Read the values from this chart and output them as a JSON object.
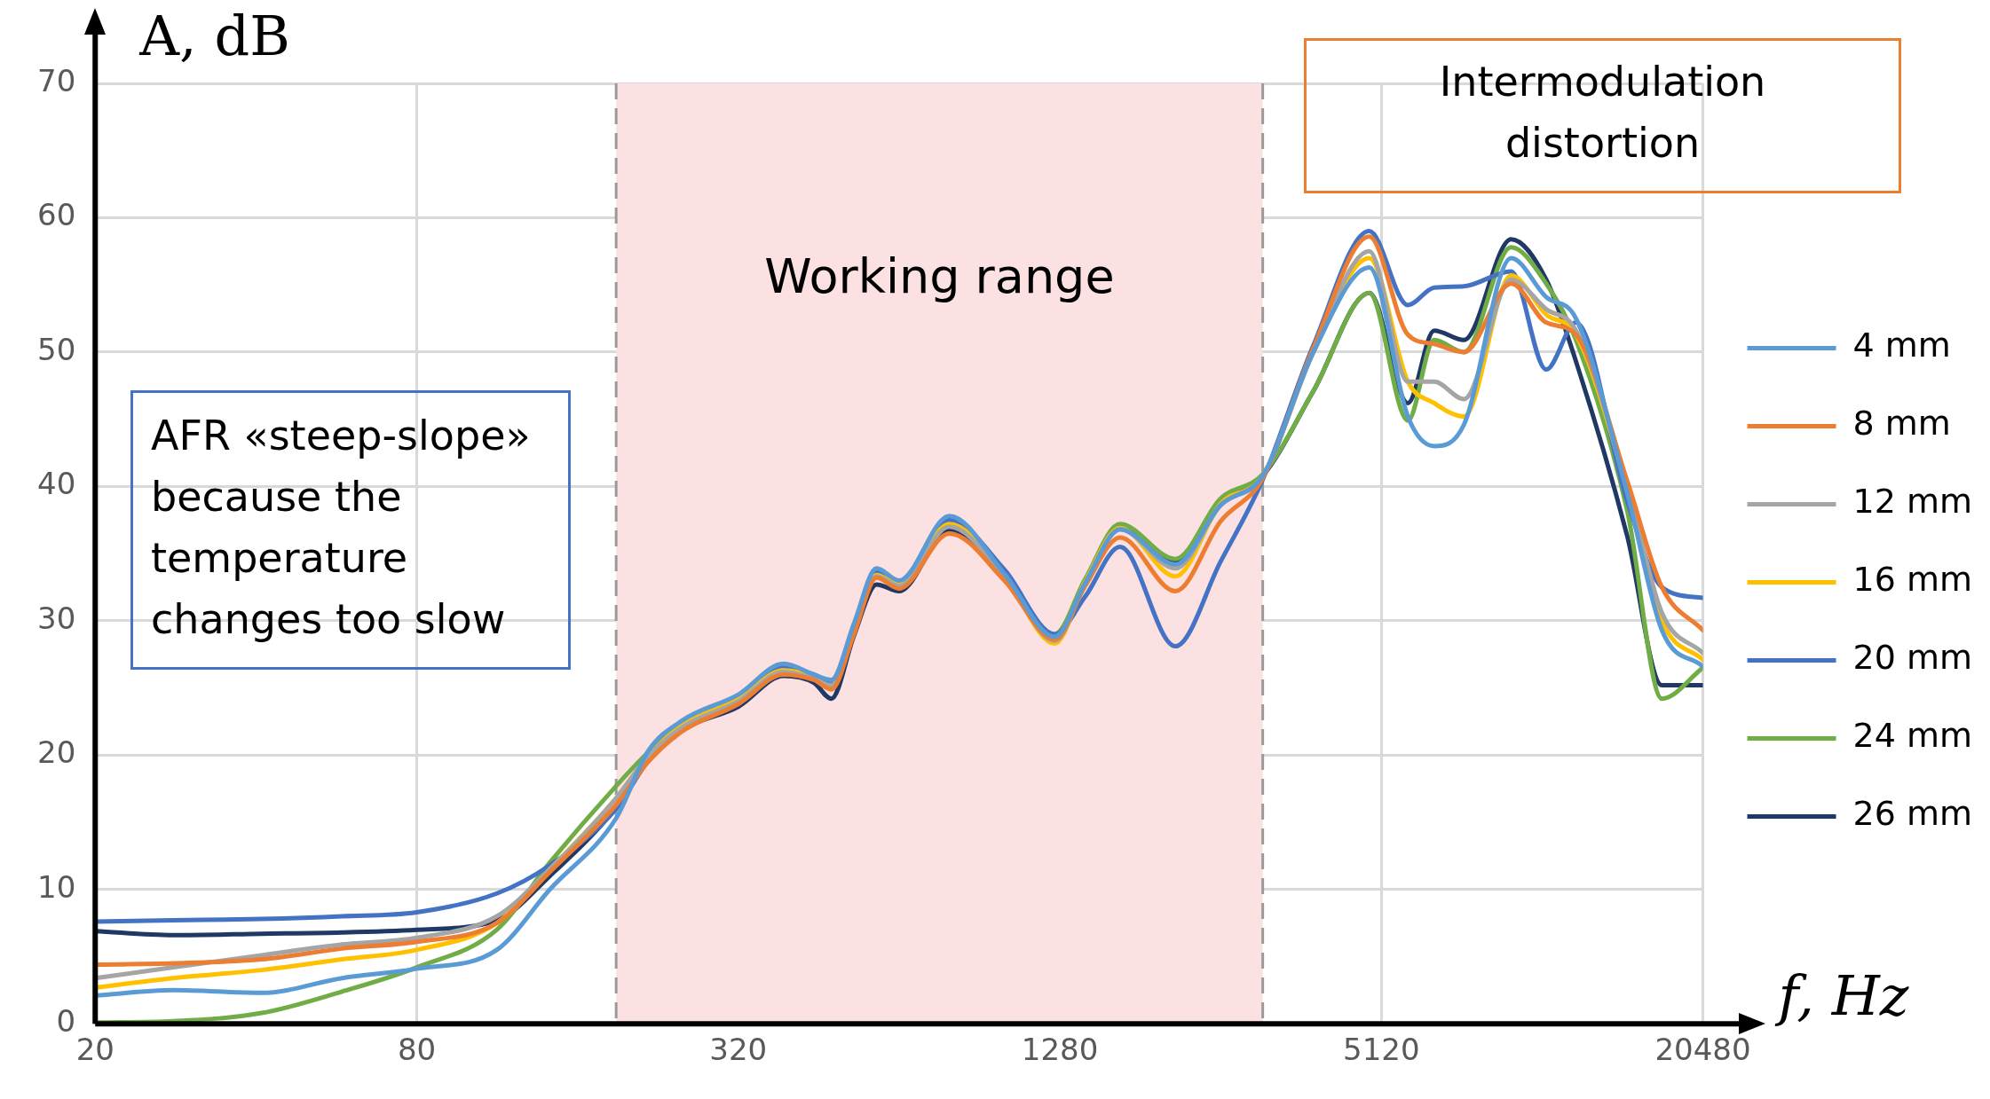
{
  "chart_data": {
    "type": "line",
    "xlabel": "f, Hz",
    "ylabel": "A, dB",
    "log": "x",
    "grid": true,
    "legend": "right",
    "marker": "none",
    "line_style": "solid",
    "xlim": [
      20,
      20480
    ],
    "xticks": [
      20,
      80,
      320,
      1280,
      5120,
      20480
    ],
    "ylim": [
      0,
      70
    ],
    "yticks": [
      0,
      10,
      20,
      30,
      40,
      50,
      60,
      70
    ],
    "bands": [
      {
        "axis": "x",
        "from": 189,
        "to": 3070,
        "label": "Working range",
        "color": "#fbe1e2"
      }
    ],
    "ref_lines": [
      {
        "axis": "x",
        "value": 189,
        "color": "#9a9a9a",
        "line_style": "dashed"
      },
      {
        "axis": "x",
        "value": 3070,
        "color": "#9a9a9a",
        "line_style": "dashed"
      }
    ],
    "annotations": [
      "AFR «steep-slope» because the temperature changes too slow",
      "Intermodulation distortion"
    ],
    "x": [
      20,
      28,
      41,
      58,
      80,
      113,
      142,
      189,
      217,
      252,
      320,
      389,
      443,
      478,
      527,
      581,
      640,
      795,
      1008,
      1252,
      1428,
      1660,
      2106,
      2560,
      3070,
      3820,
      4860,
      5740,
      6430,
      7310,
      8960,
      10420,
      11850,
      14780,
      17160,
      20480
    ],
    "series": [
      {
        "name": "4 mm",
        "color": "#5b9bd5",
        "values": [
          2.1,
          2.5,
          2.3,
          3.4,
          4.1,
          5.5,
          10.0,
          15.3,
          20.3,
          22.6,
          24.5,
          26.8,
          26.0,
          25.6,
          29.8,
          33.9,
          33.0,
          37.8,
          33.5,
          28.8,
          32.8,
          36.8,
          34.2,
          38.6,
          40.8,
          50.0,
          56.3,
          45.2,
          43.0,
          44.6,
          57.0,
          54.1,
          52.5,
          39.5,
          29.3,
          26.6
        ]
      },
      {
        "name": "8 mm",
        "color": "#ed7d31",
        "values": [
          4.4,
          4.5,
          4.8,
          5.6,
          6.1,
          7.5,
          11.3,
          16.3,
          19.5,
          21.8,
          23.8,
          26.0,
          25.6,
          24.9,
          29.0,
          33.2,
          32.4,
          36.5,
          33.0,
          28.6,
          32.6,
          36.2,
          32.2,
          37.4,
          40.6,
          50.3,
          58.6,
          51.3,
          50.6,
          50.0,
          55.1,
          52.2,
          51.3,
          40.4,
          32.5,
          29.3
        ]
      },
      {
        "name": "12 mm",
        "color": "#a5a5a5",
        "values": [
          3.4,
          4.2,
          5.1,
          5.9,
          6.4,
          8.0,
          11.5,
          16.8,
          19.9,
          22.1,
          24.0,
          26.2,
          25.7,
          25.2,
          29.2,
          33.3,
          32.6,
          37.0,
          33.3,
          28.5,
          32.8,
          36.8,
          33.9,
          38.6,
          40.8,
          50.0,
          57.5,
          47.8,
          47.8,
          46.5,
          55.4,
          53.2,
          51.6,
          40.1,
          30.6,
          27.6
        ]
      },
      {
        "name": "16 mm",
        "color": "#ffc000",
        "values": [
          2.7,
          3.4,
          4.0,
          4.8,
          5.5,
          7.5,
          11.5,
          16.8,
          19.9,
          22.3,
          24.2,
          26.3,
          25.8,
          25.0,
          29.3,
          33.4,
          32.7,
          37.2,
          33.4,
          28.3,
          32.9,
          36.9,
          33.3,
          38.7,
          40.8,
          50.0,
          57.0,
          47.8,
          46.2,
          45.2,
          55.7,
          52.8,
          51.3,
          39.8,
          30.0,
          27.1
        ]
      },
      {
        "name": "20 mm",
        "color": "#4472c4",
        "values": [
          7.6,
          7.7,
          7.8,
          8.0,
          8.3,
          9.7,
          11.8,
          16.0,
          19.6,
          22.2,
          24.3,
          26.6,
          26.0,
          25.4,
          29.5,
          33.7,
          32.9,
          37.5,
          33.8,
          29.0,
          31.8,
          35.5,
          28.1,
          34.4,
          40.5,
          50.5,
          59.0,
          53.5,
          54.8,
          54.9,
          56.0,
          48.7,
          52.2,
          38.9,
          32.5,
          31.7
        ]
      },
      {
        "name": "24 mm",
        "color": "#70ad47",
        "values": [
          0.1,
          0.2,
          0.8,
          2.4,
          4.2,
          7.0,
          12.0,
          17.7,
          20.2,
          22.3,
          24.1,
          26.2,
          25.7,
          24.9,
          29.4,
          33.5,
          32.8,
          37.4,
          33.6,
          29.0,
          33.1,
          37.2,
          34.6,
          39.1,
          40.9,
          47.1,
          54.4,
          44.9,
          50.9,
          50.0,
          57.8,
          55.1,
          50.9,
          38.2,
          24.2,
          26.5
        ]
      },
      {
        "name": "26 mm",
        "color": "#203864",
        "values": [
          6.9,
          6.6,
          6.7,
          6.8,
          7.0,
          7.7,
          11.0,
          16.1,
          19.6,
          21.9,
          23.6,
          25.9,
          25.4,
          24.2,
          28.9,
          32.7,
          32.2,
          36.8,
          33.1,
          28.8,
          33.0,
          37.1,
          34.4,
          38.9,
          40.8,
          47.1,
          54.4,
          46.2,
          51.6,
          50.9,
          58.4,
          55.4,
          49.3,
          36.3,
          25.2,
          25.2
        ]
      }
    ]
  }
}
